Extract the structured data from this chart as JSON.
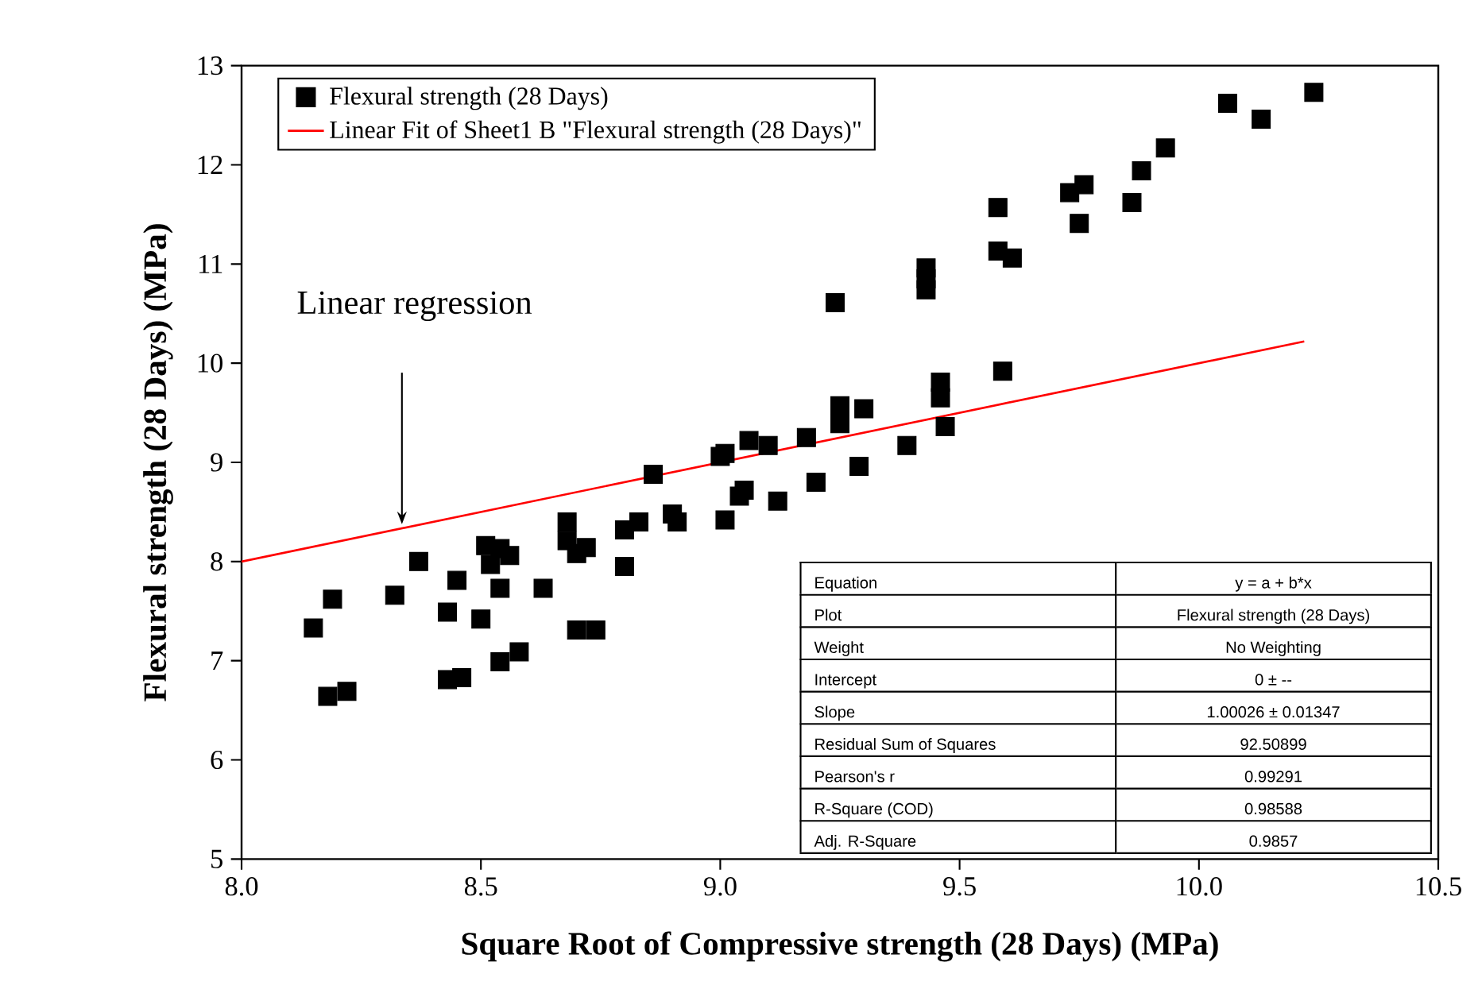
{
  "chart_data": {
    "type": "scatter",
    "xlabel": "Square Root of Compressive strength (28 Days) (MPa)",
    "ylabel": "Flexural strength (28 Days) (MPa)",
    "xlim": [
      8.0,
      10.5
    ],
    "ylim": [
      5,
      13
    ],
    "xticks": [
      {
        "value": 8.0,
        "label": "8.0"
      },
      {
        "value": 8.5,
        "label": "8.5"
      },
      {
        "value": 9.0,
        "label": "9.0"
      },
      {
        "value": 9.5,
        "label": "9.5"
      },
      {
        "value": 10.0,
        "label": "10.0"
      },
      {
        "value": 10.5,
        "label": "10.5"
      }
    ],
    "yticks": [
      5,
      6,
      7,
      8,
      9,
      10,
      11,
      12,
      13
    ],
    "legend": "top left",
    "line_style": "solid",
    "series": [
      {
        "name": "Flexural strength (28 Days)",
        "color": "#000000",
        "marker": "square",
        "x": [
          8.15,
          8.19,
          8.18,
          8.22,
          8.32,
          8.37,
          8.43,
          8.45,
          8.43,
          8.46,
          8.5,
          8.51,
          8.54,
          8.56,
          8.52,
          8.54,
          8.54,
          8.58,
          8.63,
          8.68,
          8.68,
          8.7,
          8.72,
          8.7,
          8.74,
          8.8,
          8.8,
          8.83,
          8.86,
          8.9,
          8.91,
          9.24,
          9.43,
          9.01,
          9.06,
          9.1,
          9.18,
          9.25,
          9.25,
          9.3,
          9.29,
          9.39,
          9.46,
          9.46,
          9.47,
          9.59,
          9.0,
          9.05,
          9.04,
          9.01,
          9.12,
          9.2,
          9.43,
          9.43,
          9.58,
          9.58,
          9.61,
          9.73,
          9.76,
          9.75,
          9.86,
          9.88,
          9.93,
          10.06,
          10.13,
          10.24
        ],
        "values": [
          7.33,
          7.62,
          6.64,
          6.69,
          7.66,
          8.0,
          7.49,
          7.81,
          6.81,
          6.83,
          7.42,
          8.16,
          8.13,
          8.06,
          7.97,
          7.73,
          6.99,
          7.09,
          7.73,
          8.4,
          8.21,
          8.08,
          8.14,
          7.31,
          7.31,
          7.95,
          8.32,
          8.4,
          8.88,
          8.48,
          8.4,
          10.61,
          10.74,
          9.09,
          9.22,
          9.17,
          9.25,
          9.57,
          9.39,
          9.54,
          8.96,
          9.17,
          9.81,
          9.65,
          9.36,
          9.92,
          9.06,
          8.72,
          8.66,
          8.42,
          8.61,
          8.8,
          10.85,
          10.96,
          11.57,
          11.13,
          11.06,
          11.72,
          11.8,
          11.41,
          11.62,
          11.94,
          12.17,
          12.62,
          12.46,
          12.73
        ]
      },
      {
        "name": "Linear Fit of Sheet1 B \"Flexural strength (28 Days)\"",
        "type": "line",
        "color": "#ff0000",
        "x": [
          8.0,
          10.22
        ],
        "values": [
          8.0,
          10.22
        ]
      }
    ],
    "annotations": [
      "Linear regression",
      "Equation",
      "y = a + b*x",
      "Plot",
      "Flexural strength (28 Days)",
      "Weight",
      "No Weighting",
      "Intercept",
      "0 ± --",
      "Slope",
      "1.00026 ± 0.01347",
      "Residual Sum of Squares",
      "92.50899",
      "Pearson's r",
      "0.99291",
      "R-Square (COD)",
      "0.98588",
      "Adj. R-Square",
      "0.9857"
    ]
  }
}
